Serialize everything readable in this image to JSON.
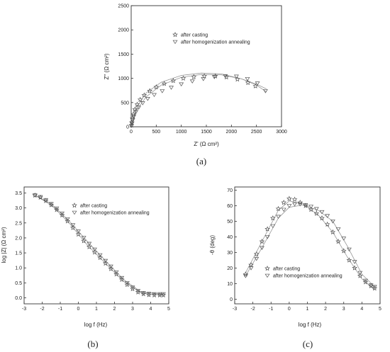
{
  "figure": {
    "panel_labels": [
      "(a)",
      "(b)",
      "(c)"
    ]
  },
  "colors": {
    "marker": "#555555",
    "fit": "#8a8a8a",
    "frame": "#333333"
  },
  "chart_data": [
    {
      "id": "a",
      "type": "scatter",
      "xlabel": "Z' (Ω cm²)",
      "ylabel": "Z'' (Ω cm²)",
      "xlim": [
        0,
        3000
      ],
      "ylim": [
        0,
        2500
      ],
      "xticks": [
        0,
        500,
        1000,
        1500,
        2000,
        2500,
        3000
      ],
      "yticks": [
        0,
        500,
        1000,
        1500,
        2000,
        2500
      ],
      "legend_position": "upper-center",
      "grid": false,
      "series": [
        {
          "name": "after casting",
          "marker": "star",
          "x": [
            5,
            12,
            25,
            45,
            75,
            120,
            180,
            260,
            370,
            500,
            660,
            840,
            1040,
            1250,
            1460,
            1680,
            1900,
            2120,
            2330,
            2480
          ],
          "y": [
            30,
            90,
            170,
            260,
            360,
            460,
            560,
            650,
            740,
            820,
            890,
            950,
            1000,
            1030,
            1045,
            1045,
            1025,
            980,
            910,
            840
          ]
        },
        {
          "name": "after homogenization annealing",
          "marker": "triangle-down",
          "x": [
            5,
            15,
            30,
            55,
            95,
            150,
            230,
            330,
            460,
            620,
            800,
            1000,
            1220,
            1440,
            1660,
            1880,
            2100,
            2320,
            2520,
            2680
          ],
          "y": [
            20,
            70,
            140,
            220,
            310,
            400,
            490,
            580,
            660,
            740,
            810,
            880,
            940,
            990,
            1030,
            1050,
            1040,
            990,
            900,
            740
          ]
        }
      ],
      "fits": [
        {
          "x": [
            0,
            100,
            300,
            600,
            1000,
            1400,
            1800,
            2200,
            2500,
            2700
          ],
          "y": [
            0,
            400,
            700,
            920,
            1060,
            1110,
            1090,
            990,
            860,
            720
          ]
        },
        {
          "x": [
            0,
            100,
            300,
            600,
            1000,
            1400,
            1800,
            2200,
            2500,
            2700
          ],
          "y": [
            0,
            330,
            620,
            860,
            1020,
            1080,
            1070,
            990,
            880,
            780
          ]
        }
      ]
    },
    {
      "id": "b",
      "type": "scatter",
      "xlabel": "log f (Hz)",
      "ylabel": "log |Z| (Ω cm²)",
      "xlim": [
        -3,
        5
      ],
      "ylim": [
        -0.2,
        3.7
      ],
      "xticks": [
        -3,
        -2,
        -1,
        0,
        1,
        2,
        3,
        4,
        5
      ],
      "yticks": [
        0.0,
        0.5,
        1.0,
        1.5,
        2.0,
        2.5,
        3.0,
        3.5
      ],
      "ytick_labels": [
        "0.0",
        "0.5",
        "1.0",
        "1.5",
        "2.0",
        "2.5",
        "3.0",
        "3.5"
      ],
      "legend_position": "upper-right",
      "grid": false,
      "series": [
        {
          "name": "after casting",
          "marker": "star",
          "x": [
            -2.4,
            -2.1,
            -1.8,
            -1.5,
            -1.2,
            -0.9,
            -0.6,
            -0.3,
            0.0,
            0.3,
            0.6,
            0.9,
            1.2,
            1.5,
            1.8,
            2.1,
            2.4,
            2.7,
            3.0,
            3.3,
            3.6,
            3.9,
            4.2,
            4.5,
            4.7
          ],
          "y": [
            3.42,
            3.35,
            3.24,
            3.1,
            2.94,
            2.76,
            2.56,
            2.34,
            2.12,
            1.9,
            1.7,
            1.52,
            1.34,
            1.15,
            0.97,
            0.79,
            0.61,
            0.44,
            0.3,
            0.19,
            0.13,
            0.1,
            0.09,
            0.09,
            0.09
          ]
        },
        {
          "name": "after homogenization annealing",
          "marker": "triangle-down",
          "x": [
            -2.4,
            -2.1,
            -1.8,
            -1.5,
            -1.2,
            -0.9,
            -0.6,
            -0.3,
            0.0,
            0.3,
            0.6,
            0.9,
            1.2,
            1.5,
            1.8,
            2.1,
            2.4,
            2.7,
            3.0,
            3.3,
            3.6,
            3.9,
            4.2,
            4.5,
            4.7
          ],
          "y": [
            3.43,
            3.37,
            3.27,
            3.14,
            2.99,
            2.82,
            2.63,
            2.43,
            2.22,
            2.01,
            1.81,
            1.62,
            1.43,
            1.24,
            1.05,
            0.86,
            0.67,
            0.5,
            0.35,
            0.24,
            0.17,
            0.14,
            0.13,
            0.13,
            0.13
          ]
        }
      ],
      "fits": [
        {
          "x": [
            -2.4,
            -1.5,
            -0.5,
            0.5,
            1.5,
            2.5,
            3.5,
            4.7
          ],
          "y": [
            3.42,
            3.1,
            2.49,
            1.76,
            1.15,
            0.55,
            0.15,
            0.09
          ]
        },
        {
          "x": [
            -2.4,
            -1.5,
            -0.5,
            0.5,
            1.5,
            2.5,
            3.5,
            4.7
          ],
          "y": [
            3.43,
            3.14,
            2.56,
            1.88,
            1.24,
            0.61,
            0.18,
            0.13
          ]
        }
      ]
    },
    {
      "id": "c",
      "type": "scatter",
      "xlabel": "log f (Hz)",
      "ylabel": "-θ (deg)",
      "xlim": [
        -3,
        5
      ],
      "ylim": [
        -3,
        72
      ],
      "xticks": [
        -3,
        -2,
        -1,
        0,
        1,
        2,
        3,
        4,
        5
      ],
      "yticks": [
        0,
        10,
        20,
        30,
        40,
        50,
        60,
        70
      ],
      "legend_position": "lower-center",
      "grid": false,
      "series": [
        {
          "name": "after casting",
          "marker": "star",
          "x": [
            -2.4,
            -2.1,
            -1.8,
            -1.5,
            -1.2,
            -0.9,
            -0.6,
            -0.3,
            0.0,
            0.3,
            0.6,
            0.9,
            1.2,
            1.5,
            1.8,
            2.1,
            2.4,
            2.7,
            3.0,
            3.3,
            3.6,
            3.9,
            4.2,
            4.5,
            4.7
          ],
          "y": [
            16,
            22,
            29,
            37,
            45,
            52,
            58,
            62,
            64.5,
            64,
            62,
            60,
            57.5,
            55,
            52,
            48,
            43,
            37,
            31,
            25,
            20,
            15,
            11,
            8.5,
            7
          ]
        },
        {
          "name": "after homogenization annealing",
          "marker": "triangle-down",
          "x": [
            -2.4,
            -2.1,
            -1.8,
            -1.5,
            -1.2,
            -0.9,
            -0.6,
            -0.3,
            0.0,
            0.3,
            0.6,
            0.9,
            1.2,
            1.5,
            1.8,
            2.1,
            2.4,
            2.7,
            3.0,
            3.3,
            3.6,
            3.9,
            4.2,
            4.5,
            4.7
          ],
          "y": [
            15,
            20,
            26,
            33,
            40,
            47,
            53,
            57.5,
            60,
            61,
            61,
            60.5,
            59.5,
            58,
            56,
            53.5,
            50,
            45,
            39,
            32,
            24,
            17,
            12,
            9,
            8
          ]
        }
      ],
      "fits": [
        {
          "x": [
            -2.4,
            -1.5,
            -0.6,
            0.0,
            0.8,
            1.6,
            2.4,
            3.2,
            4.0,
            4.7
          ],
          "y": [
            17,
            37,
            57,
            63,
            61,
            54,
            43,
            27,
            13,
            6
          ]
        },
        {
          "x": [
            -2.4,
            -1.5,
            -0.6,
            0.0,
            0.8,
            1.6,
            2.4,
            3.2,
            4.0,
            4.7
          ],
          "y": [
            15,
            33,
            52,
            59,
            60.5,
            57,
            50,
            34,
            16,
            8
          ]
        }
      ]
    }
  ]
}
